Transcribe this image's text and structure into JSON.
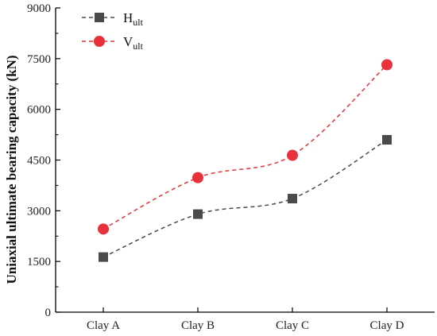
{
  "chart_data": {
    "type": "line",
    "categories": [
      "Clay A",
      "Clay B",
      "Clay C",
      "Clay D"
    ],
    "ylabel": "Uniaxial ultimate bearing capacity (kN)",
    "xlabel": "",
    "ylim": [
      0,
      9000
    ],
    "yticks": [
      0,
      1500,
      3000,
      4500,
      6000,
      7500,
      9000
    ],
    "ytick_labels": [
      "0",
      "1500",
      "3000",
      "4500",
      "6000",
      "7500",
      "9000"
    ],
    "legend_position": "top-left",
    "grid": false,
    "series": [
      {
        "name_main": "H",
        "name_sub": "ult",
        "marker": "square",
        "color": "#4a4a4a",
        "values": [
          1630,
          2900,
          3360,
          5100
        ]
      },
      {
        "name_main": "V",
        "name_sub": "ult",
        "marker": "circle",
        "color": "#e8313a",
        "values": [
          2460,
          3980,
          4640,
          7320
        ]
      }
    ]
  }
}
